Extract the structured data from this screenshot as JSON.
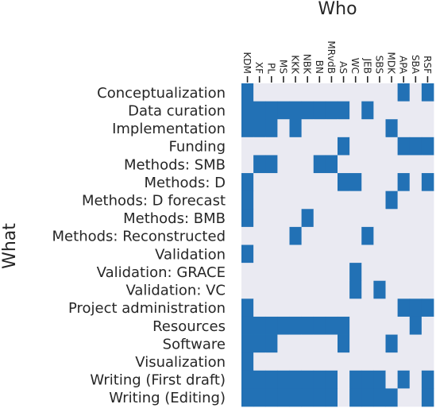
{
  "chart_data": {
    "type": "heatmap",
    "xlabel": "Who",
    "ylabel": "What",
    "x": [
      "KDM",
      "XF",
      "PL",
      "MS",
      "KKK",
      "NBK",
      "BN",
      "MRvdB",
      "AS",
      "WC",
      "JEB",
      "SBS",
      "MDK",
      "APA",
      "SBA",
      "RSF"
    ],
    "y": [
      "Conceptualization",
      "Data curation",
      "Implementation",
      "Funding",
      "Methods: SMB",
      "Methods: D",
      "Methods: D forecast",
      "Methods: BMB",
      "Methods: Reconstructed",
      "Validation",
      "Validation: GRACE",
      "Validation: VC",
      "Project administration",
      "Resources",
      "Software",
      "Visualization",
      "Writing (First draft)",
      "Writing (Editing)"
    ],
    "values": [
      [
        1,
        0,
        0,
        0,
        0,
        0,
        0,
        0,
        0,
        0,
        0,
        0,
        0,
        1,
        0,
        1
      ],
      [
        1,
        1,
        1,
        1,
        1,
        1,
        1,
        1,
        1,
        0,
        1,
        0,
        0,
        0,
        0,
        0
      ],
      [
        1,
        1,
        1,
        0,
        1,
        0,
        0,
        0,
        0,
        0,
        0,
        0,
        1,
        0,
        0,
        0
      ],
      [
        0,
        0,
        0,
        0,
        0,
        0,
        0,
        0,
        1,
        0,
        0,
        0,
        0,
        1,
        1,
        1
      ],
      [
        0,
        1,
        1,
        0,
        0,
        0,
        1,
        1,
        0,
        0,
        0,
        0,
        0,
        0,
        0,
        0
      ],
      [
        1,
        0,
        0,
        0,
        0,
        0,
        0,
        0,
        1,
        1,
        0,
        0,
        0,
        1,
        0,
        1
      ],
      [
        1,
        0,
        0,
        0,
        0,
        0,
        0,
        0,
        0,
        0,
        0,
        0,
        1,
        0,
        0,
        0
      ],
      [
        1,
        0,
        0,
        0,
        0,
        1,
        0,
        0,
        0,
        0,
        0,
        0,
        0,
        0,
        0,
        0
      ],
      [
        0,
        0,
        0,
        0,
        1,
        0,
        0,
        0,
        0,
        0,
        1,
        0,
        0,
        0,
        0,
        0
      ],
      [
        1,
        0,
        0,
        0,
        0,
        0,
        0,
        0,
        0,
        0,
        0,
        0,
        0,
        0,
        0,
        0
      ],
      [
        0,
        0,
        0,
        0,
        0,
        0,
        0,
        0,
        0,
        1,
        0,
        0,
        0,
        0,
        0,
        0
      ],
      [
        0,
        0,
        0,
        0,
        0,
        0,
        0,
        0,
        0,
        1,
        0,
        1,
        0,
        0,
        0,
        0
      ],
      [
        1,
        0,
        0,
        0,
        0,
        0,
        0,
        0,
        0,
        0,
        0,
        0,
        0,
        1,
        1,
        1
      ],
      [
        1,
        1,
        1,
        1,
        1,
        1,
        1,
        1,
        1,
        0,
        0,
        0,
        0,
        0,
        1,
        0
      ],
      [
        1,
        1,
        1,
        0,
        0,
        0,
        0,
        0,
        1,
        0,
        0,
        0,
        1,
        0,
        0,
        0
      ],
      [
        1,
        0,
        0,
        0,
        0,
        0,
        0,
        0,
        0,
        0,
        0,
        0,
        0,
        0,
        0,
        0
      ],
      [
        1,
        1,
        1,
        1,
        1,
        1,
        1,
        1,
        0,
        1,
        1,
        1,
        0,
        1,
        0,
        1
      ],
      [
        1,
        1,
        1,
        1,
        1,
        1,
        1,
        1,
        0,
        1,
        1,
        1,
        1,
        0,
        0,
        1
      ]
    ],
    "colors": {
      "on": "#2271b5",
      "off": "#eaeaf2",
      "text": "#262626"
    },
    "grid": false,
    "legend": "none"
  }
}
